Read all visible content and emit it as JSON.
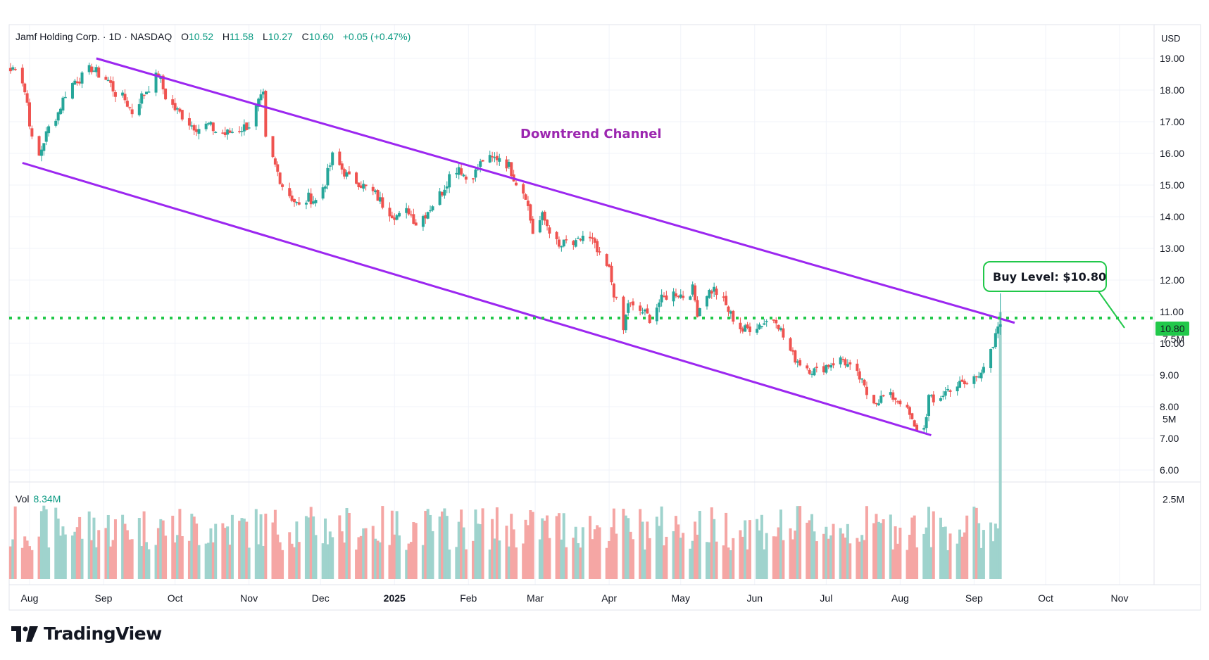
{
  "header": {
    "symbol": "Jamf Holding Corp.",
    "interval": "1D",
    "exchange": "NASDAQ",
    "open_label": "O",
    "open_value": "10.52",
    "high_label": "H",
    "high_value": "11.58",
    "low_label": "L",
    "low_value": "10.27",
    "close_label": "C",
    "close_value": "10.60",
    "change": "+0.05 (+0.47%)"
  },
  "currency": "USD",
  "volume_label": "Vol",
  "volume_value": "8.34M",
  "annotations": {
    "channel_title": "Downtrend Channel",
    "buy_level": "Buy Level: $10.80",
    "level_tag": "10.80"
  },
  "brand": "TradingView",
  "colors": {
    "up": "#26a69a",
    "down": "#ef5350",
    "vol_up": "#9fd3cd",
    "vol_down": "#f5a6a4",
    "channel": "#9c27f0",
    "level": "#21c84a",
    "grid": "#f0f3fa"
  },
  "chart_data": {
    "type": "candlestick",
    "title": "Jamf Holding Corp. · 1D · NASDAQ",
    "price_axis": {
      "ylim": [
        6,
        20
      ],
      "ticks": [
        "19.00",
        "18.00",
        "17.00",
        "16.00",
        "15.00",
        "14.00",
        "13.00",
        "12.00",
        "11.00",
        "10.00",
        "9.00",
        "8.00",
        "7.00",
        "6.00"
      ]
    },
    "volume_axis": {
      "ylim": [
        0,
        9000000
      ],
      "ticks": [
        "7.5M",
        "5M",
        "2.5M"
      ]
    },
    "time_axis": {
      "ticks": [
        "Aug",
        "Sep",
        "Oct",
        "Nov",
        "Dec",
        "2025",
        "Feb",
        "Mar",
        "Apr",
        "May",
        "Jun",
        "Jul",
        "Aug",
        "Sep",
        "Oct",
        "Nov"
      ],
      "bold": [
        "2025"
      ]
    },
    "grid": true,
    "close_path": [
      [
        "2024-07-24",
        18.6
      ],
      [
        "2024-07-26",
        18.8
      ],
      [
        "2024-07-29",
        18.3
      ],
      [
        "2024-07-31",
        17.6
      ],
      [
        "2024-08-02",
        16.4
      ],
      [
        "2024-08-05",
        15.9
      ],
      [
        "2024-08-07",
        16.4
      ],
      [
        "2024-08-09",
        16.8
      ],
      [
        "2024-08-13",
        17.3
      ],
      [
        "2024-08-16",
        17.9
      ],
      [
        "2024-08-20",
        18.3
      ],
      [
        "2024-08-23",
        18.4
      ],
      [
        "2024-08-27",
        18.7
      ],
      [
        "2024-08-30",
        18.5
      ],
      [
        "2024-09-03",
        18.3
      ],
      [
        "2024-09-06",
        17.9
      ],
      [
        "2024-09-10",
        17.7
      ],
      [
        "2024-09-13",
        17.3
      ],
      [
        "2024-09-17",
        17.8
      ],
      [
        "2024-09-20",
        18.1
      ],
      [
        "2024-09-24",
        18.5
      ],
      [
        "2024-09-27",
        17.8
      ],
      [
        "2024-10-01",
        17.4
      ],
      [
        "2024-10-04",
        17.2
      ],
      [
        "2024-10-08",
        16.9
      ],
      [
        "2024-10-11",
        16.8
      ],
      [
        "2024-10-15",
        16.9
      ],
      [
        "2024-10-18",
        16.7
      ],
      [
        "2024-10-22",
        16.6
      ],
      [
        "2024-10-25",
        16.7
      ],
      [
        "2024-10-29",
        16.8
      ],
      [
        "2024-11-01",
        16.9
      ],
      [
        "2024-11-05",
        17.6
      ],
      [
        "2024-11-07",
        17.8
      ],
      [
        "2024-11-08",
        16.4
      ],
      [
        "2024-11-12",
        15.6
      ],
      [
        "2024-11-15",
        15.0
      ],
      [
        "2024-11-19",
        14.6
      ],
      [
        "2024-11-22",
        14.3
      ],
      [
        "2024-11-26",
        14.6
      ],
      [
        "2024-11-29",
        14.5
      ],
      [
        "2024-12-03",
        15.1
      ],
      [
        "2024-12-06",
        15.9
      ],
      [
        "2024-12-10",
        15.5
      ],
      [
        "2024-12-13",
        15.2
      ],
      [
        "2024-12-17",
        15.1
      ],
      [
        "2024-12-20",
        14.9
      ],
      [
        "2024-12-24",
        14.7
      ],
      [
        "2024-12-27",
        14.4
      ],
      [
        "2024-12-31",
        14.1
      ],
      [
        "2025-01-03",
        14.0
      ],
      [
        "2025-01-07",
        14.2
      ],
      [
        "2025-01-10",
        13.8
      ],
      [
        "2025-01-14",
        14.1
      ],
      [
        "2025-01-17",
        14.4
      ],
      [
        "2025-01-21",
        14.8
      ],
      [
        "2025-01-24",
        15.3
      ],
      [
        "2025-01-28",
        15.6
      ],
      [
        "2025-01-31",
        15.2
      ],
      [
        "2025-02-04",
        15.4
      ],
      [
        "2025-02-07",
        15.8
      ],
      [
        "2025-02-11",
        15.8
      ],
      [
        "2025-02-14",
        15.9
      ],
      [
        "2025-02-18",
        15.6
      ],
      [
        "2025-02-21",
        15.1
      ],
      [
        "2025-02-25",
        14.7
      ],
      [
        "2025-02-28",
        13.5
      ],
      [
        "2025-03-04",
        14.0
      ],
      [
        "2025-03-07",
        13.6
      ],
      [
        "2025-03-11",
        13.0
      ],
      [
        "2025-03-14",
        13.2
      ],
      [
        "2025-03-18",
        13.1
      ],
      [
        "2025-03-21",
        13.4
      ],
      [
        "2025-03-25",
        13.2
      ],
      [
        "2025-03-28",
        12.7
      ],
      [
        "2025-04-01",
        12.3
      ],
      [
        "2025-04-03",
        11.6
      ],
      [
        "2025-04-07",
        10.4
      ],
      [
        "2025-04-09",
        11.3
      ],
      [
        "2025-04-11",
        11.1
      ],
      [
        "2025-04-15",
        11.0
      ],
      [
        "2025-04-18",
        10.8
      ],
      [
        "2025-04-22",
        11.3
      ],
      [
        "2025-04-25",
        11.5
      ],
      [
        "2025-04-29",
        11.6
      ],
      [
        "2025-05-02",
        11.5
      ],
      [
        "2025-05-06",
        11.7
      ],
      [
        "2025-05-08",
        11.0
      ],
      [
        "2025-05-12",
        11.6
      ],
      [
        "2025-05-15",
        11.7
      ],
      [
        "2025-05-19",
        11.3
      ],
      [
        "2025-05-22",
        10.9
      ],
      [
        "2025-05-27",
        10.4
      ],
      [
        "2025-05-30",
        10.5
      ],
      [
        "2025-06-03",
        10.6
      ],
      [
        "2025-06-06",
        10.7
      ],
      [
        "2025-06-10",
        10.8
      ],
      [
        "2025-06-13",
        10.2
      ],
      [
        "2025-06-17",
        9.6
      ],
      [
        "2025-06-20",
        9.4
      ],
      [
        "2025-06-24",
        9.2
      ],
      [
        "2025-06-27",
        9.1
      ],
      [
        "2025-07-01",
        9.3
      ],
      [
        "2025-07-04",
        9.4
      ],
      [
        "2025-07-08",
        9.5
      ],
      [
        "2025-07-11",
        9.2
      ],
      [
        "2025-07-15",
        8.9
      ],
      [
        "2025-07-18",
        8.4
      ],
      [
        "2025-07-22",
        8.2
      ],
      [
        "2025-07-25",
        8.3
      ],
      [
        "2025-07-29",
        8.3
      ],
      [
        "2025-08-01",
        8.2
      ],
      [
        "2025-08-05",
        7.7
      ],
      [
        "2025-08-07",
        7.3
      ],
      [
        "2025-08-11",
        7.3
      ],
      [
        "2025-08-13",
        8.3
      ],
      [
        "2025-08-15",
        8.1
      ],
      [
        "2025-08-19",
        8.4
      ],
      [
        "2025-08-22",
        8.6
      ],
      [
        "2025-08-26",
        8.7
      ],
      [
        "2025-08-29",
        8.7
      ],
      [
        "2025-09-02",
        9.0
      ],
      [
        "2025-09-05",
        9.3
      ],
      [
        "2025-09-09",
        9.8
      ],
      [
        "2025-09-11",
        10.55
      ],
      [
        "2025-09-12",
        10.6
      ]
    ],
    "last_bar": {
      "date": "2025-09-12",
      "open": 10.52,
      "high": 11.58,
      "low": 10.27,
      "close": 10.6,
      "volume": "8.34M"
    },
    "channel_upper": [
      [
        "2024-08-29",
        19.0
      ],
      [
        "2025-09-18",
        10.65
      ]
    ],
    "channel_lower": [
      [
        "2024-07-29",
        15.7
      ],
      [
        "2025-08-14",
        7.1
      ]
    ],
    "horizontal_level": 10.8
  }
}
